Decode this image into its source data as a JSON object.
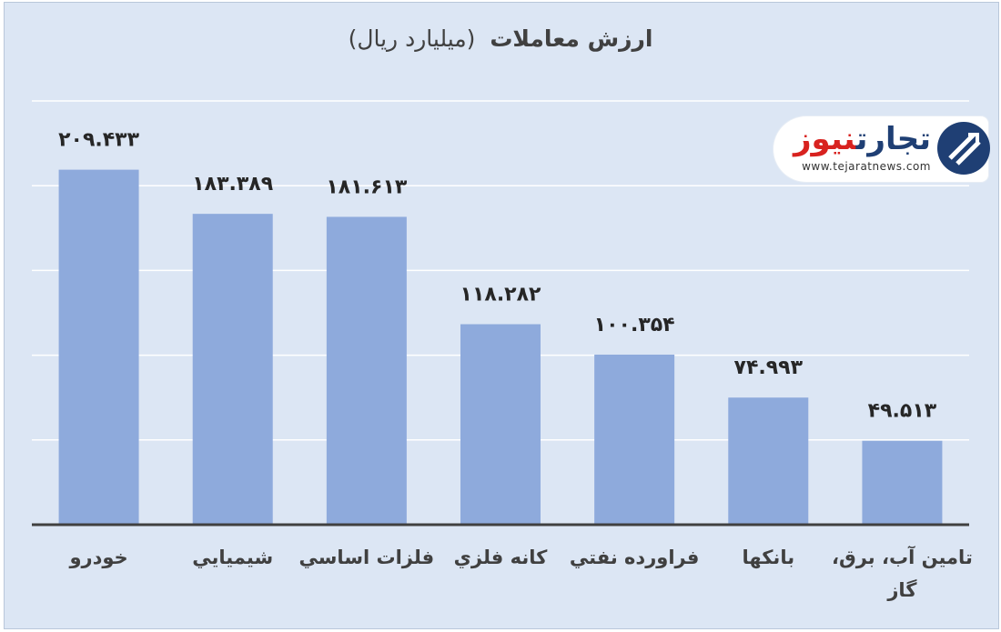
{
  "chart_data": {
    "type": "bar",
    "title_bold": "ارزش معاملات",
    "title_normal": "(میلیارد ریال)",
    "categories": [
      "خودرو",
      "شيميايي",
      "فلزات اساسي",
      "كانه فلزي",
      "فراورده نفتي",
      "بانكها",
      "تامين آب، برق، گاز"
    ],
    "category_lines": [
      [
        "خودرو"
      ],
      [
        "شيميايي"
      ],
      [
        "فلزات اساسي"
      ],
      [
        "كانه فلزي"
      ],
      [
        "فراورده نفتي"
      ],
      [
        "بانكها"
      ],
      [
        "تامين آب، برق،",
        "گاز"
      ]
    ],
    "values": [
      209.433,
      183.389,
      181.613,
      118.282,
      100.354,
      74.993,
      49.513
    ],
    "data_labels": [
      "۲۰۹.۴۳۳",
      "۱۸۳.۳۸۹",
      "۱۸۱.۶۱۳",
      "۱۱۸.۲۸۲",
      "۱۰۰.۳۵۴",
      "۷۴.۹۹۳",
      "۴۹.۵۱۳"
    ],
    "ylim": [
      0,
      250
    ],
    "grid": true,
    "legend": "none",
    "bar_color": "#8eaadc",
    "axis_color": "#404040",
    "grid_color": "#ffffff"
  },
  "watermark": {
    "brand_part1": "تجارت",
    "brand_part2": "نیوز",
    "url": "www.tejaratnews.com",
    "color_primary": "#1f3f74",
    "color_accent": "#d8221f"
  }
}
